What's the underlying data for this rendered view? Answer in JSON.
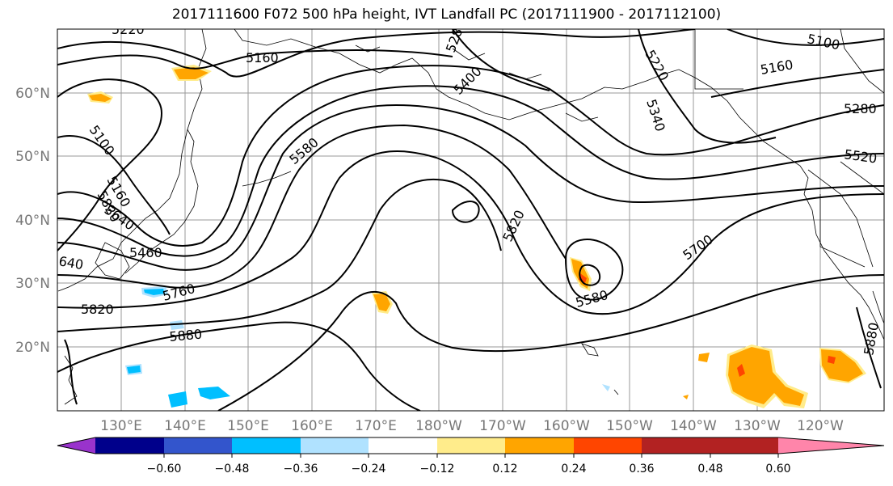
{
  "title": "2017111600 F072 500 hPa height, IVT Landfall PC (2017111900 - 2017112100)",
  "latitude_labels": [
    "60°N",
    "50°N",
    "40°N",
    "30°N",
    "20°N"
  ],
  "longitude_labels": [
    "130°E",
    "140°E",
    "150°E",
    "160°E",
    "170°E",
    "180°W",
    "170°W",
    "160°W",
    "150°W",
    "140°W",
    "130°W",
    "120°W"
  ],
  "contour_labels": [
    {
      "text": "5220"
    },
    {
      "text": "5160"
    },
    {
      "text": "5100"
    },
    {
      "text": "5160"
    },
    {
      "text": "5400"
    },
    {
      "text": "5220"
    },
    {
      "text": "5340"
    },
    {
      "text": "5100"
    },
    {
      "text": "5160"
    },
    {
      "text": "5280"
    },
    {
      "text": "5520"
    },
    {
      "text": "5580"
    },
    {
      "text": "5820"
    },
    {
      "text": "5640"
    },
    {
      "text": "5580"
    },
    {
      "text": "5700"
    },
    {
      "text": "5760"
    },
    {
      "text": "5820"
    },
    {
      "text": "5880"
    },
    {
      "text": "5880"
    },
    {
      "text": "5820"
    },
    {
      "text": "5460"
    },
    {
      "text": "640"
    },
    {
      "text": "528"
    }
  ],
  "colorbar": {
    "ticks": [
      "−0.60",
      "−0.48",
      "−0.36",
      "−0.24",
      "−0.12",
      "0.12",
      "0.24",
      "0.36",
      "0.48",
      "0.60"
    ],
    "colors": [
      "#9933cc",
      "#00008b",
      "#3355cc",
      "#00bfff",
      "#b0e2ff",
      "#ffffff",
      "#ffec8b",
      "#ffa500",
      "#ff4500",
      "#b22222",
      "#ff85aa"
    ]
  }
}
